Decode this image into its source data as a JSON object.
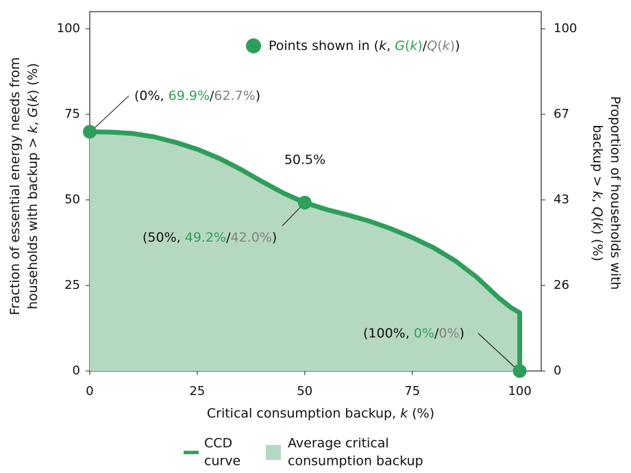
{
  "chart_data": {
    "type": "line",
    "xlabel": [
      {
        "t": "Critical consumption backup, "
      },
      {
        "t": "k",
        "i": true
      },
      {
        "t": " (%)"
      }
    ],
    "ylabel": [
      [
        {
          "t": "Fraction of essential energy needs from"
        }
      ],
      [
        {
          "t": "households with backup > "
        },
        {
          "t": "k",
          "i": true
        },
        {
          "t": ", "
        },
        {
          "t": "G",
          "i": true
        },
        {
          "t": "("
        },
        {
          "t": "k",
          "i": true
        },
        {
          "t": ") (%)"
        }
      ]
    ],
    "ylabel_color": "#2e9e5b",
    "y2label": [
      [
        {
          "t": "Proportion of households with"
        }
      ],
      [
        {
          "t": "backup > "
        },
        {
          "t": "k",
          "i": true
        },
        {
          "t": ", "
        },
        {
          "t": "Q",
          "i": true
        },
        {
          "t": "("
        },
        {
          "t": "k",
          "i": true
        },
        {
          "t": ") (%)"
        }
      ]
    ],
    "y2label_color": "#808080",
    "xlim": [
      0,
      105
    ],
    "xticks": [
      0,
      25,
      50,
      75,
      100
    ],
    "ylim": [
      0,
      105
    ],
    "yticks": [
      0,
      25,
      50,
      75,
      100
    ],
    "y2ticks": [
      0,
      26,
      43,
      67,
      100
    ],
    "series": [
      {
        "name": [
          "CCD",
          "curve"
        ],
        "color": "#2e9e5b",
        "x": [
          0,
          5,
          10,
          15,
          20,
          25,
          30,
          35,
          40,
          45,
          50,
          55,
          60,
          65,
          70,
          75,
          80,
          85,
          90,
          95,
          98,
          100,
          100
        ],
        "values": [
          69.9,
          69.8,
          69.4,
          68.4,
          66.8,
          64.8,
          62.2,
          59,
          55.4,
          52,
          49.2,
          47.2,
          45.6,
          43.8,
          41.6,
          39,
          36,
          32.2,
          27.4,
          21.5,
          18.5,
          17,
          0
        ]
      }
    ],
    "area": {
      "name": [
        "Average critical",
        "consumption backup"
      ],
      "color": "#b5d9c0",
      "value_label": "50.5%",
      "label_color": "#2e9e5b"
    },
    "points": {
      "x": [
        0,
        50,
        100
      ],
      "g": [
        69.9,
        49.2,
        0
      ],
      "q": [
        62.7,
        42.0,
        0
      ],
      "color": "#2e9e5b",
      "legend": [
        {
          "t": "Points shown in ("
        },
        {
          "t": "k",
          "i": true
        },
        {
          "t": ", "
        },
        {
          "t": "G",
          "i": true,
          "c": "#2e9e5b"
        },
        {
          "t": "(",
          "c": "#2e9e5b"
        },
        {
          "t": "k",
          "i": true,
          "c": "#2e9e5b"
        },
        {
          "t": ")",
          "c": "#2e9e5b"
        },
        {
          "t": "/"
        },
        {
          "t": "Q",
          "i": true,
          "c": "#808080"
        },
        {
          "t": "(",
          "c": "#808080"
        },
        {
          "t": "k",
          "i": true,
          "c": "#808080"
        },
        {
          "t": ")",
          "c": "#808080"
        },
        {
          "t": ")"
        }
      ],
      "labels": [
        [
          {
            "t": "(0%, "
          },
          {
            "t": "69.9%",
            "c": "#2e9e5b"
          },
          {
            "t": "/"
          },
          {
            "t": "62.7%",
            "c": "#808080"
          },
          {
            "t": ")"
          }
        ],
        [
          {
            "t": "(50%, "
          },
          {
            "t": "49.2%",
            "c": "#2e9e5b"
          },
          {
            "t": "/"
          },
          {
            "t": "42.0%",
            "c": "#808080"
          },
          {
            "t": ")"
          }
        ],
        [
          {
            "t": "(100%, "
          },
          {
            "t": "0%",
            "c": "#2e9e5b"
          },
          {
            "t": "/"
          },
          {
            "t": "0%",
            "c": "#808080"
          },
          {
            "t": ")"
          }
        ]
      ]
    }
  }
}
